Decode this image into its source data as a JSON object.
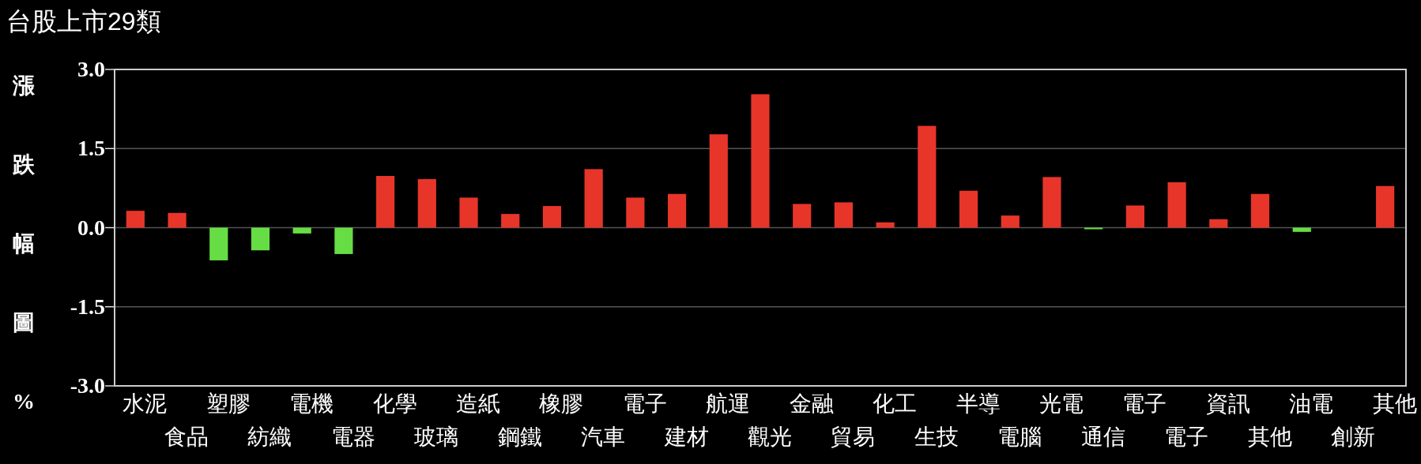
{
  "chart_data": {
    "type": "bar",
    "title": "台股上市29類",
    "ylabel": "漲跌幅圖%",
    "categories": [
      "水泥",
      "食品",
      "塑膠",
      "紡織",
      "電機",
      "電器",
      "化學",
      "玻璃",
      "造紙",
      "鋼鐵",
      "橡膠",
      "汽車",
      "電子",
      "建材",
      "航運",
      "觀光",
      "金融",
      "貿易",
      "化工",
      "生技",
      "半導",
      "電腦",
      "光電",
      "通信",
      "電子",
      "電子",
      "資訊",
      "其他",
      "油電",
      "創新",
      "其他"
    ],
    "values": [
      0.32,
      0.28,
      -0.62,
      -0.43,
      -0.11,
      -0.5,
      0.98,
      0.92,
      0.57,
      0.26,
      0.41,
      1.11,
      0.57,
      0.64,
      1.77,
      2.53,
      0.45,
      0.48,
      0.1,
      1.93,
      0.7,
      0.23,
      0.96,
      -0.03,
      0.42,
      0.86,
      0.16,
      0.64,
      -0.08,
      0,
      0.79
    ],
    "colors": [
      "#e8352a",
      "#e8352a",
      "#66dd44",
      "#66dd44",
      "#66dd44",
      "#66dd44",
      "#e8352a",
      "#e8352a",
      "#e8352a",
      "#e8352a",
      "#e8352a",
      "#e8352a",
      "#e8352a",
      "#e8352a",
      "#e8352a",
      "#e8352a",
      "#e8352a",
      "#e8352a",
      "#e8352a",
      "#e8352a",
      "#e8352a",
      "#e8352a",
      "#e8352a",
      "#66dd44",
      "#e8352a",
      "#e8352a",
      "#e8352a",
      "#e8352a",
      "#66dd44",
      "#e8352a",
      "#e8352a"
    ],
    "ylim": [
      -3.0,
      3.0
    ],
    "yticks": [
      {
        "value": 3.0,
        "label": "3.0"
      },
      {
        "value": 1.5,
        "label": "1.5"
      },
      {
        "value": 0,
        "label": "0.0"
      },
      {
        "value": -1.5,
        "label": "-1.5"
      },
      {
        "value": -3.0,
        "label": "-3.0"
      }
    ],
    "grid": "y"
  }
}
